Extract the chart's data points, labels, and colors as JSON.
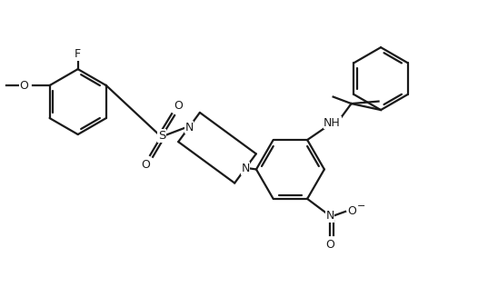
{
  "background_color": "#ffffff",
  "line_color": "#1a1a1a",
  "line_width": 1.6,
  "figsize": [
    5.26,
    3.16
  ],
  "dpi": 100,
  "xlim": [
    0,
    10.5
  ],
  "ylim": [
    0,
    6.3
  ]
}
